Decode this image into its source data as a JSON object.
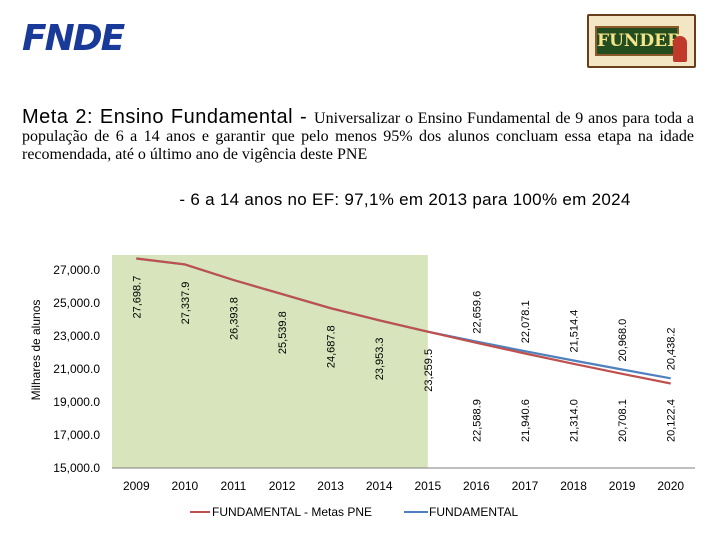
{
  "header": {
    "left_logo_text": "FNDE",
    "right_logo_text": "FUNDEB"
  },
  "title": {
    "main": "Meta 2: Ensino Fundamental",
    "separator": " - ",
    "description": "Universalizar o Ensino Fundamental de 9 anos para toda a população de 6 a 14 anos e garantir que pelo menos 95% dos alunos concluam essa etapa na idade recomendada, até o último ano de vigência deste PNE"
  },
  "subtitle": "- 6 a 14 anos no EF: 97,1% em 2013 para 100% em 2024",
  "chart_data": {
    "type": "line",
    "ylabel": "Milhares de alunos",
    "xlabel": "",
    "ylim": [
      15000,
      27500
    ],
    "y_ticks": [
      15000,
      17000,
      19000,
      21000,
      23000,
      25000,
      27000
    ],
    "y_tick_labels": [
      "15,000.0",
      "17,000.0",
      "19,000.0",
      "21,000.0",
      "23,000.0",
      "25,000.0",
      "27,000.0"
    ],
    "categories": [
      "2009",
      "2010",
      "2011",
      "2012",
      "2013",
      "2014",
      "2015",
      "2016",
      "2017",
      "2018",
      "2019",
      "2020"
    ],
    "shaded_range": [
      "2009",
      "2015"
    ],
    "series": [
      {
        "name": "FUNDAMENTAL - Metas PNE",
        "color": "#c0504d",
        "values": [
          27698.7,
          27337.9,
          26393.8,
          25539.8,
          24687.8,
          23953.3,
          23259.5,
          22588.9,
          21940.6,
          21314.0,
          20708.1,
          20122.4
        ],
        "labels": [
          "27,698.7",
          "27,337.9",
          "26,393.8",
          "25,539.8",
          "24,687.8",
          "23,953.3",
          "23,259.5",
          "22,588.9",
          "21,940.6",
          "21,314.0",
          "20,708.1",
          "20,122.4"
        ]
      },
      {
        "name": "FUNDAMENTAL",
        "color": "#4f81bd",
        "values": [
          27698.7,
          27337.9,
          26393.8,
          25539.8,
          24687.8,
          23953.3,
          23259.5,
          22659.6,
          22078.1,
          21514.4,
          20968.0,
          20438.2
        ],
        "labels": [
          null,
          null,
          null,
          null,
          null,
          null,
          null,
          "22,659.6",
          "22,078.1",
          "21,514.4",
          "20,968.0",
          "20,438.2"
        ]
      }
    ]
  }
}
